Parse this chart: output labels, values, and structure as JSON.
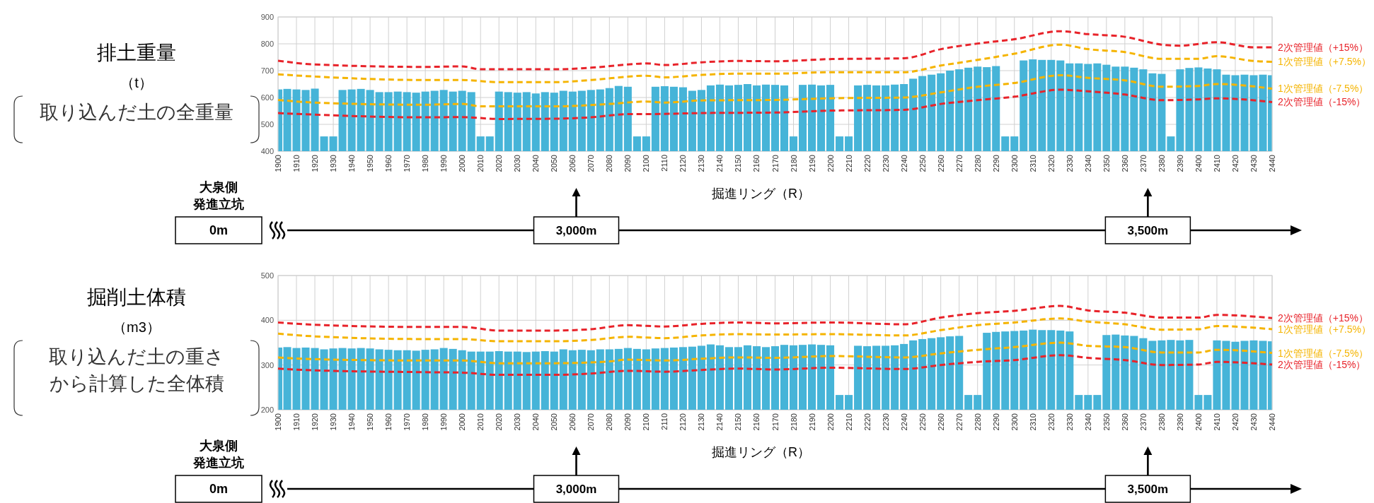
{
  "chart_data": [
    {
      "type": "bar",
      "title": "排土重量",
      "ylabel": "（t）",
      "xlabel": "掘進リング（R）",
      "annotations": [
        "取り込んだ土の全重量",
        "大泉側",
        "発進立坑",
        "0m",
        "3,000m",
        "3,500m"
      ],
      "xlim": [
        1900,
        2440
      ],
      "ylim": [
        400,
        900
      ],
      "yticks": [
        400,
        500,
        600,
        700,
        800,
        900
      ],
      "xticks": [
        1900,
        1910,
        1920,
        1930,
        1940,
        1950,
        1960,
        1970,
        1980,
        1990,
        2000,
        2010,
        2020,
        2030,
        2040,
        2050,
        2060,
        2070,
        2080,
        2090,
        2100,
        2110,
        2120,
        2130,
        2140,
        2150,
        2160,
        2170,
        2180,
        2190,
        2200,
        2210,
        2220,
        2230,
        2240,
        2250,
        2260,
        2270,
        2280,
        2290,
        2300,
        2310,
        2320,
        2330,
        2340,
        2350,
        2360,
        2370,
        2380,
        2390,
        2400,
        2410,
        2420,
        2430,
        2440
      ],
      "grid": true,
      "legend": false,
      "line_style": "dashed",
      "marker": "none",
      "series": [
        {
          "color": "#46b4d8",
          "x": [
            1900,
            1905,
            1910,
            1915,
            1920,
            1925,
            1930,
            1935,
            1940,
            1945,
            1950,
            1955,
            1960,
            1965,
            1970,
            1975,
            1980,
            1985,
            1990,
            1995,
            2000,
            2005,
            2010,
            2015,
            2020,
            2025,
            2030,
            2035,
            2040,
            2045,
            2050,
            2055,
            2060,
            2065,
            2070,
            2075,
            2080,
            2085,
            2090,
            2095,
            2100,
            2105,
            2110,
            2115,
            2120,
            2125,
            2130,
            2135,
            2140,
            2145,
            2150,
            2155,
            2160,
            2165,
            2170,
            2175,
            2180,
            2185,
            2190,
            2195,
            2200,
            2205,
            2210,
            2215,
            2220,
            2225,
            2230,
            2235,
            2240,
            2245,
            2250,
            2255,
            2260,
            2265,
            2270,
            2275,
            2280,
            2285,
            2290,
            2295,
            2300,
            2305,
            2310,
            2315,
            2320,
            2325,
            2330,
            2335,
            2340,
            2345,
            2350,
            2355,
            2360,
            2365,
            2370,
            2375,
            2380,
            2385,
            2390,
            2395,
            2400,
            2405,
            2410,
            2415,
            2420,
            2425,
            2430,
            2435,
            2440
          ],
          "values": [
            630,
            632,
            630,
            628,
            633,
            455,
            455,
            628,
            630,
            632,
            628,
            620,
            620,
            622,
            620,
            618,
            622,
            625,
            628,
            622,
            625,
            620,
            455,
            455,
            622,
            620,
            618,
            620,
            615,
            620,
            618,
            625,
            622,
            625,
            628,
            630,
            635,
            643,
            640,
            455,
            455,
            640,
            642,
            640,
            638,
            625,
            628,
            645,
            648,
            645,
            647,
            650,
            645,
            648,
            647,
            645,
            455,
            647,
            648,
            645,
            647,
            455,
            455,
            645,
            647,
            645,
            645,
            648,
            650,
            670,
            680,
            685,
            690,
            700,
            705,
            711,
            715,
            713,
            717,
            455,
            455,
            738,
            742,
            740,
            740,
            738,
            727,
            727,
            725,
            727,
            722,
            715,
            715,
            711,
            705,
            690,
            688,
            455,
            705,
            710,
            712,
            708,
            705,
            685,
            683,
            685,
            683,
            685,
            683
          ]
        },
        {
          "type": "line",
          "name": "2次管理値（+15%）",
          "color": "#e8232a",
          "x": [
            1900,
            1920,
            1980,
            2000,
            2010,
            2050,
            2070,
            2090,
            2100,
            2110,
            2130,
            2150,
            2170,
            2200,
            2240,
            2260,
            2280,
            2300,
            2325,
            2340,
            2360,
            2380,
            2390,
            2410,
            2430,
            2440
          ],
          "values": [
            737,
            723,
            714,
            716,
            705,
            705,
            711,
            723,
            727,
            721,
            731,
            736,
            735,
            743,
            746,
            780,
            801,
            817,
            847,
            836,
            826,
            797,
            793,
            806,
            787,
            787
          ]
        },
        {
          "type": "line",
          "name": "1次管理値（+7.5%）",
          "color": "#f5b400",
          "x": [
            1900,
            1920,
            1980,
            2000,
            2020,
            2050,
            2070,
            2100,
            2110,
            2130,
            2150,
            2170,
            2200,
            2240,
            2260,
            2280,
            2300,
            2325,
            2340,
            2360,
            2380,
            2400,
            2410,
            2430,
            2440
          ],
          "values": [
            686,
            678,
            665,
            665,
            657,
            657,
            665,
            681,
            675,
            684,
            689,
            689,
            694,
            694,
            719,
            740,
            763,
            797,
            780,
            769,
            744,
            744,
            754,
            736,
            733
          ]
        },
        {
          "type": "line",
          "name": "1次管理値（-7.5%）",
          "color": "#f5b400",
          "x": [
            1900,
            1920,
            1980,
            2000,
            2010,
            2050,
            2080,
            2100,
            2110,
            2130,
            2170,
            2200,
            2240,
            2260,
            2280,
            2300,
            2325,
            2340,
            2360,
            2380,
            2400,
            2410,
            2440
          ],
          "values": [
            591,
            581,
            573,
            576,
            567,
            567,
            576,
            585,
            581,
            589,
            591,
            597,
            600,
            619,
            640,
            654,
            683,
            673,
            664,
            640,
            643,
            650,
            633
          ]
        },
        {
          "type": "line",
          "name": "2次管理値（-15%）",
          "color": "#e8232a",
          "x": [
            1900,
            1920,
            1980,
            2000,
            2020,
            2050,
            2070,
            2090,
            2100,
            2130,
            2170,
            2200,
            2240,
            2260,
            2280,
            2300,
            2325,
            2340,
            2360,
            2380,
            2400,
            2410,
            2440
          ],
          "values": [
            542,
            536,
            526,
            527,
            520,
            521,
            526,
            538,
            538,
            542,
            544,
            551,
            554,
            576,
            590,
            603,
            629,
            623,
            611,
            590,
            593,
            597,
            583
          ]
        }
      ]
    },
    {
      "type": "bar",
      "title": "掘削土体積",
      "ylabel": "（m3）",
      "xlabel": "掘進リング（R）",
      "annotations": [
        "取り込んだ土の重さ",
        "から計算した全体積",
        "大泉側",
        "発進立坑",
        "0m",
        "3,000m",
        "3,500m"
      ],
      "xlim": [
        1900,
        2440
      ],
      "ylim": [
        200,
        500
      ],
      "yticks": [
        200,
        300,
        400,
        500
      ],
      "xticks": [
        1900,
        1910,
        1920,
        1930,
        1940,
        1950,
        1960,
        1970,
        1980,
        1990,
        2000,
        2010,
        2020,
        2030,
        2040,
        2050,
        2060,
        2070,
        2080,
        2090,
        2100,
        2110,
        2120,
        2130,
        2140,
        2150,
        2160,
        2170,
        2180,
        2190,
        2200,
        2210,
        2220,
        2230,
        2240,
        2250,
        2260,
        2270,
        2280,
        2290,
        2300,
        2310,
        2320,
        2330,
        2340,
        2350,
        2360,
        2370,
        2380,
        2390,
        2400,
        2410,
        2420,
        2430,
        2440
      ],
      "grid": true,
      "legend": false,
      "line_style": "dashed",
      "marker": "none",
      "series": [
        {
          "color": "#46b4d8",
          "x": [
            1900,
            1905,
            1910,
            1915,
            1920,
            1925,
            1930,
            1935,
            1940,
            1945,
            1950,
            1955,
            1960,
            1965,
            1970,
            1975,
            1980,
            1985,
            1990,
            1995,
            2000,
            2005,
            2010,
            2015,
            2020,
            2025,
            2030,
            2035,
            2040,
            2045,
            2050,
            2055,
            2060,
            2065,
            2070,
            2075,
            2080,
            2085,
            2090,
            2095,
            2100,
            2105,
            2110,
            2115,
            2120,
            2125,
            2130,
            2135,
            2140,
            2145,
            2150,
            2155,
            2160,
            2165,
            2170,
            2175,
            2180,
            2185,
            2190,
            2195,
            2200,
            2205,
            2210,
            2215,
            2220,
            2225,
            2230,
            2235,
            2240,
            2245,
            2250,
            2255,
            2260,
            2265,
            2270,
            2275,
            2280,
            2285,
            2290,
            2295,
            2300,
            2305,
            2310,
            2315,
            2320,
            2325,
            2330,
            2335,
            2340,
            2345,
            2350,
            2355,
            2360,
            2365,
            2370,
            2375,
            2380,
            2385,
            2390,
            2395,
            2400,
            2405,
            2410,
            2415,
            2420,
            2425,
            2430,
            2435,
            2440
          ],
          "values": [
            339,
            340,
            338,
            339,
            338,
            335,
            337,
            338,
            337,
            338,
            337,
            335,
            334,
            333,
            333,
            332,
            334,
            335,
            338,
            336,
            333,
            330,
            330,
            330,
            331,
            330,
            330,
            329,
            330,
            331,
            330,
            335,
            333,
            334,
            333,
            335,
            335,
            336,
            338,
            336,
            335,
            337,
            338,
            339,
            340,
            341,
            343,
            346,
            344,
            340,
            340,
            344,
            342,
            340,
            342,
            345,
            344,
            345,
            346,
            345,
            344,
            233,
            233,
            343,
            342,
            343,
            343,
            344,
            347,
            355,
            358,
            360,
            362,
            364,
            365,
            233,
            233,
            372,
            374,
            375,
            376,
            377,
            379,
            378,
            378,
            377,
            375,
            233,
            233,
            233,
            367,
            368,
            366,
            365,
            360,
            354,
            355,
            356,
            355,
            356,
            233,
            233,
            355,
            354,
            352,
            354,
            355,
            354,
            353
          ]
        },
        {
          "type": "line",
          "name": "2次管理値（+15%）",
          "color": "#e8232a",
          "x": [
            1900,
            1920,
            1980,
            2000,
            2020,
            2050,
            2070,
            2090,
            2110,
            2130,
            2150,
            2170,
            2200,
            2240,
            2260,
            2280,
            2300,
            2325,
            2340,
            2360,
            2380,
            2400,
            2410,
            2440
          ],
          "values": [
            395,
            390,
            385,
            385,
            377,
            377,
            380,
            389,
            386,
            392,
            395,
            393,
            395,
            391,
            406,
            416,
            421,
            432,
            422,
            417,
            406,
            406,
            412,
            405
          ]
        },
        {
          "type": "line",
          "name": "1次管理値（+7.5%）",
          "color": "#f5b400",
          "x": [
            1900,
            1920,
            1980,
            2000,
            2020,
            2050,
            2070,
            2090,
            2110,
            2130,
            2150,
            2170,
            2200,
            2240,
            2260,
            2280,
            2300,
            2325,
            2340,
            2360,
            2380,
            2400,
            2410,
            2440
          ],
          "values": [
            370,
            364,
            358,
            358,
            353,
            353,
            356,
            363,
            360,
            366,
            369,
            368,
            369,
            366,
            378,
            389,
            395,
            404,
            397,
            391,
            379,
            380,
            387,
            380
          ]
        },
        {
          "type": "line",
          "name": "1次管理値（-7.5%）",
          "color": "#f5b400",
          "x": [
            1900,
            1920,
            1980,
            2000,
            2020,
            2050,
            2080,
            2090,
            2110,
            2130,
            2150,
            2170,
            2200,
            2240,
            2260,
            2280,
            2300,
            2325,
            2340,
            2360,
            2380,
            2400,
            2410,
            2440
          ],
          "values": [
            317,
            313,
            310,
            310,
            304,
            304,
            308,
            312,
            310,
            314,
            317,
            316,
            320,
            317,
            326,
            334,
            340,
            350,
            343,
            340,
            328,
            328,
            334,
            327
          ]
        },
        {
          "type": "line",
          "name": "2次管理値（-15%）",
          "color": "#e8232a",
          "x": [
            1900,
            1920,
            1980,
            2000,
            2020,
            2050,
            2070,
            2090,
            2110,
            2130,
            2150,
            2170,
            2200,
            2240,
            2260,
            2280,
            2300,
            2325,
            2340,
            2360,
            2380,
            2400,
            2410,
            2440
          ],
          "values": [
            292,
            288,
            284,
            283,
            278,
            278,
            281,
            287,
            285,
            289,
            292,
            290,
            294,
            291,
            300,
            307,
            311,
            322,
            316,
            311,
            300,
            301,
            307,
            301
          ]
        }
      ]
    }
  ]
}
